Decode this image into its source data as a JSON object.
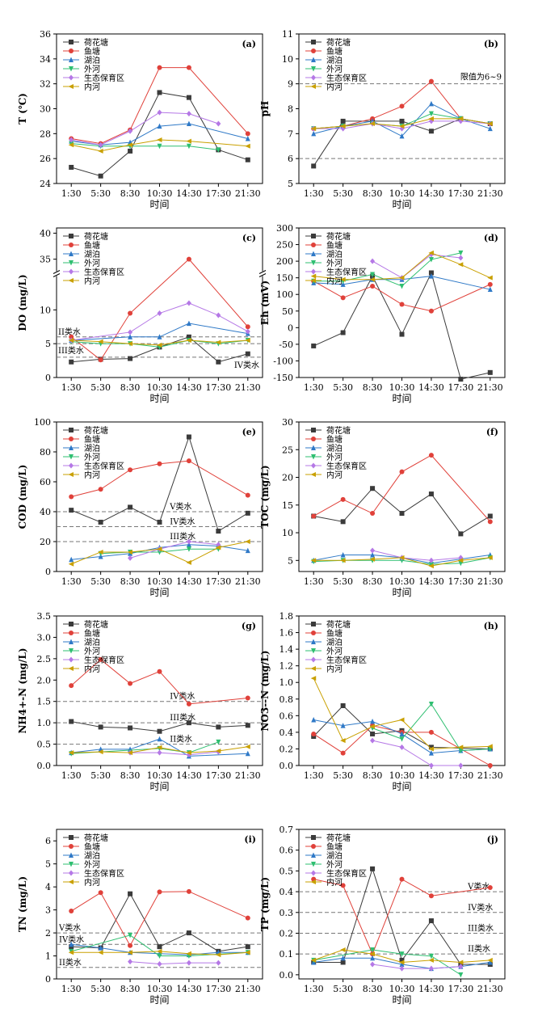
{
  "chart_data": [
    {
      "id": "a",
      "type": "line",
      "panel_label": "(a)",
      "categories": [
        "1:30",
        "5:30",
        "8:30",
        "10:30",
        "14:30",
        "17:30",
        "21:30"
      ],
      "xlabel": "时间",
      "ylabel": "T (℃)",
      "ylim": [
        24,
        36
      ],
      "yticks": [
        24,
        26,
        28,
        30,
        32,
        34,
        36
      ],
      "series": [
        {
          "name": "荷花塘",
          "values": [
            25.3,
            24.6,
            26.6,
            31.3,
            30.9,
            26.7,
            25.9
          ]
        },
        {
          "name": "鱼塘",
          "values": [
            27.6,
            27.2,
            28.3,
            33.3,
            33.3,
            null,
            28.0
          ]
        },
        {
          "name": "湖泊",
          "values": [
            27.4,
            27.1,
            27.3,
            28.6,
            28.8,
            null,
            27.6
          ]
        },
        {
          "name": "外河",
          "values": [
            27.2,
            27.0,
            27.0,
            27.0,
            27.0,
            26.7,
            null
          ]
        },
        {
          "name": "生态保育区",
          "values": [
            27.5,
            27.1,
            28.2,
            29.7,
            29.6,
            28.8,
            null
          ]
        },
        {
          "name": "内河",
          "values": [
            27.1,
            26.6,
            27.1,
            27.5,
            27.4,
            null,
            27.0
          ]
        }
      ],
      "reference_lines": []
    },
    {
      "id": "b",
      "type": "line",
      "panel_label": "(b)",
      "categories": [
        "1:30",
        "5:30",
        "8:30",
        "10:30",
        "14:30",
        "17:30",
        "21:30"
      ],
      "xlabel": "时间",
      "ylabel": "pH",
      "ylim": [
        5,
        11
      ],
      "yticks": [
        5,
        6,
        7,
        8,
        9,
        10,
        11
      ],
      "series": [
        {
          "name": "荷花塘",
          "values": [
            5.7,
            7.5,
            7.5,
            7.5,
            7.1,
            7.6,
            7.4
          ]
        },
        {
          "name": "鱼塘",
          "values": [
            7.2,
            7.3,
            7.6,
            8.1,
            9.1,
            7.6,
            7.4
          ]
        },
        {
          "name": "湖泊",
          "values": [
            7.0,
            7.3,
            7.5,
            6.9,
            8.2,
            7.6,
            7.2
          ]
        },
        {
          "name": "外河",
          "values": [
            7.2,
            7.3,
            7.4,
            7.3,
            7.8,
            7.6,
            7.4
          ]
        },
        {
          "name": "生态保育区",
          "values": [
            7.2,
            7.2,
            7.4,
            7.2,
            7.5,
            7.5,
            7.4
          ]
        },
        {
          "name": "内河",
          "values": [
            7.2,
            7.3,
            7.4,
            7.3,
            7.6,
            7.6,
            7.4
          ]
        }
      ],
      "reference_lines": [
        {
          "value": 9,
          "label": "限值为6~9"
        },
        {
          "value": 6,
          "label": ""
        }
      ]
    },
    {
      "id": "c",
      "type": "line",
      "panel_label": "(c)",
      "categories": [
        "1:30",
        "5:30",
        "8:30",
        "10:30",
        "14:30",
        "17:30",
        "21:30"
      ],
      "xlabel": "时间",
      "ylabel": "DO (mg/L)",
      "broken_axis": {
        "lower_range": [
          0,
          15
        ],
        "upper_range": [
          33,
          41
        ]
      },
      "yticks": [
        0,
        5,
        10,
        35,
        40
      ],
      "series": [
        {
          "name": "荷花塘",
          "values": [
            2.3,
            2.7,
            2.8,
            4.5,
            6.0,
            2.3,
            3.5
          ]
        },
        {
          "name": "鱼塘",
          "values": [
            6.0,
            2.6,
            9.5,
            null,
            35.0,
            null,
            7.5
          ]
        },
        {
          "name": "湖泊",
          "values": [
            5.5,
            null,
            6.0,
            6.0,
            8.0,
            null,
            6.5
          ]
        },
        {
          "name": "外河",
          "values": [
            5.3,
            5.0,
            5.0,
            4.5,
            5.5,
            5.0,
            5.5
          ]
        },
        {
          "name": "生态保育区",
          "values": [
            5.5,
            null,
            6.7,
            9.5,
            11.0,
            9.2,
            6.8
          ]
        },
        {
          "name": "内河",
          "values": [
            5.5,
            5.3,
            5.0,
            4.8,
            5.5,
            5.2,
            5.5
          ]
        }
      ],
      "reference_lines": [
        {
          "value": 6,
          "label": "II类水"
        },
        {
          "value": 5,
          "label": "III类水"
        },
        {
          "value": 3,
          "label": "IV类水"
        }
      ]
    },
    {
      "id": "d",
      "type": "line",
      "panel_label": "(d)",
      "categories": [
        "1:30",
        "5:30",
        "8:30",
        "10:30",
        "14:30",
        "17:30",
        "21:30"
      ],
      "xlabel": "时间",
      "ylabel": "Eh (mV)",
      "ylim": [
        -150,
        300
      ],
      "yticks": [
        -150,
        -100,
        -50,
        0,
        50,
        100,
        150,
        200,
        250,
        300
      ],
      "series": [
        {
          "name": "荷花塘",
          "values": [
            -55,
            -15,
            155,
            -20,
            165,
            -155,
            -135
          ]
        },
        {
          "name": "鱼塘",
          "values": [
            140,
            90,
            125,
            70,
            50,
            null,
            130
          ]
        },
        {
          "name": "湖泊",
          "values": [
            135,
            130,
            145,
            145,
            155,
            null,
            115
          ]
        },
        {
          "name": "外河",
          "values": [
            140,
            140,
            160,
            125,
            205,
            225,
            null
          ]
        },
        {
          "name": "生态保育区",
          "values": [
            null,
            null,
            200,
            150,
            220,
            210,
            null
          ]
        },
        {
          "name": "内河",
          "values": [
            155,
            145,
            145,
            150,
            225,
            190,
            150
          ]
        }
      ],
      "reference_lines": []
    },
    {
      "id": "e",
      "type": "line",
      "panel_label": "(e)",
      "categories": [
        "1:30",
        "5:30",
        "8:30",
        "10:30",
        "14:30",
        "17:30",
        "21:30"
      ],
      "xlabel": "时间",
      "ylabel": "COD (mg/L)",
      "ylim": [
        0,
        100
      ],
      "yticks": [
        0,
        20,
        40,
        60,
        80,
        100
      ],
      "series": [
        {
          "name": "荷花塘",
          "values": [
            41,
            33,
            43,
            33,
            90,
            27,
            39
          ]
        },
        {
          "name": "鱼塘",
          "values": [
            50,
            55,
            68,
            72,
            74,
            null,
            51
          ]
        },
        {
          "name": "湖泊",
          "values": [
            8,
            10,
            12,
            16,
            18,
            17,
            14
          ]
        },
        {
          "name": "外河",
          "values": [
            null,
            12,
            13,
            13,
            15,
            15,
            null
          ]
        },
        {
          "name": "生态保育区",
          "values": [
            null,
            null,
            9,
            15,
            20,
            18,
            null
          ]
        },
        {
          "name": "内河",
          "values": [
            5,
            13,
            13,
            15,
            6,
            16,
            20
          ]
        }
      ],
      "reference_lines": [
        {
          "value": 40,
          "label": "V类水"
        },
        {
          "value": 30,
          "label": "IV类水"
        },
        {
          "value": 20,
          "label": "III类水"
        }
      ]
    },
    {
      "id": "f",
      "type": "line",
      "panel_label": "(f)",
      "categories": [
        "1:30",
        "5:30",
        "8:30",
        "10:30",
        "14:30",
        "17:30",
        "21:30"
      ],
      "xlabel": "时间",
      "ylabel": "TOC (mg/L)",
      "ylim": [
        3,
        30
      ],
      "yticks": [
        5,
        10,
        15,
        20,
        25,
        30
      ],
      "series": [
        {
          "name": "荷花塘",
          "values": [
            13,
            12,
            18,
            13.5,
            17,
            9.8,
            13
          ]
        },
        {
          "name": "鱼塘",
          "values": [
            13,
            16,
            13.5,
            21,
            24,
            null,
            12
          ]
        },
        {
          "name": "湖泊",
          "values": [
            5,
            6,
            6,
            5.5,
            4.5,
            null,
            6
          ]
        },
        {
          "name": "外河",
          "values": [
            4.8,
            5,
            5,
            5,
            4.3,
            4.5,
            5.5
          ]
        },
        {
          "name": "生态保育区",
          "values": [
            null,
            null,
            6.8,
            5.5,
            5,
            5.5,
            null
          ]
        },
        {
          "name": "内河",
          "values": [
            5,
            5,
            5.2,
            5.5,
            4,
            5,
            5.5
          ]
        }
      ],
      "reference_lines": []
    },
    {
      "id": "g",
      "type": "line",
      "panel_label": "(g)",
      "categories": [
        "1:30",
        "5:30",
        "8:30",
        "10:30",
        "14:30",
        "17:30",
        "21:30"
      ],
      "xlabel": "时间",
      "ylabel": "NH4+-N (mg/L)",
      "ylim": [
        0,
        3.5
      ],
      "yticks": [
        0.0,
        0.5,
        1.0,
        1.5,
        2.0,
        2.5,
        3.0,
        3.5
      ],
      "series": [
        {
          "name": "荷花塘",
          "values": [
            1.03,
            0.9,
            0.88,
            0.8,
            1.0,
            0.9,
            0.94
          ]
        },
        {
          "name": "鱼塘",
          "values": [
            1.87,
            2.48,
            1.92,
            2.2,
            1.44,
            null,
            1.58
          ]
        },
        {
          "name": "湖泊",
          "values": [
            0.3,
            0.38,
            0.38,
            0.62,
            0.22,
            null,
            0.28
          ]
        },
        {
          "name": "外河",
          "values": [
            0.28,
            null,
            null,
            0.4,
            0.3,
            0.55,
            null
          ]
        },
        {
          "name": "生态保育区",
          "values": [
            null,
            null,
            0.3,
            0.3,
            0.25,
            0.32,
            null
          ]
        },
        {
          "name": "内河",
          "values": [
            0.3,
            0.32,
            0.3,
            0.42,
            0.3,
            0.34,
            0.44
          ]
        }
      ],
      "reference_lines": [
        {
          "value": 1.5,
          "label": "IV类水"
        },
        {
          "value": 1.0,
          "label": "III类水"
        },
        {
          "value": 0.5,
          "label": "II类水"
        }
      ]
    },
    {
      "id": "h",
      "type": "line",
      "panel_label": "(h)",
      "categories": [
        "1:30",
        "5:30",
        "8:30",
        "10:30",
        "14:30",
        "17:30",
        "21:30"
      ],
      "xlabel": "时间",
      "ylabel": "NO3--N (mg/L)",
      "ylim": [
        0,
        1.8
      ],
      "yticks": [
        0.0,
        0.2,
        0.4,
        0.6,
        0.8,
        1.0,
        1.2,
        1.4,
        1.6,
        1.8
      ],
      "series": [
        {
          "name": "荷花塘",
          "values": [
            0.35,
            0.72,
            0.38,
            0.42,
            0.22,
            null,
            0.2
          ]
        },
        {
          "name": "鱼塘",
          "values": [
            0.38,
            0.15,
            0.48,
            0.4,
            0.4,
            null,
            0.0
          ]
        },
        {
          "name": "湖泊",
          "values": [
            0.55,
            0.48,
            0.53,
            0.38,
            0.15,
            0.18,
            0.2
          ]
        },
        {
          "name": "外河",
          "values": [
            null,
            null,
            0.45,
            0.32,
            0.74,
            0.18,
            0.2
          ]
        },
        {
          "name": "生态保育区",
          "values": [
            null,
            null,
            0.3,
            0.22,
            0.0,
            0.0,
            null
          ]
        },
        {
          "name": "内河",
          "values": [
            1.05,
            0.3,
            0.47,
            0.55,
            0.2,
            0.22,
            0.23
          ]
        }
      ],
      "reference_lines": []
    },
    {
      "id": "i",
      "type": "line",
      "panel_label": "(i)",
      "categories": [
        "1:30",
        "5:30",
        "8:30",
        "10:30",
        "14:30",
        "17:30",
        "21:30"
      ],
      "xlabel": "时间",
      "ylabel": "TN (mg/L)",
      "ylim": [
        0,
        6.5
      ],
      "yticks": [
        0,
        1,
        2,
        3,
        4,
        5,
        6
      ],
      "series": [
        {
          "name": "荷花塘",
          "values": [
            1.4,
            1.35,
            3.7,
            1.4,
            2.0,
            1.2,
            1.4
          ]
        },
        {
          "name": "鱼塘",
          "values": [
            2.95,
            3.75,
            1.45,
            3.78,
            3.8,
            null,
            2.65
          ]
        },
        {
          "name": "湖泊",
          "values": [
            1.5,
            1.35,
            1.15,
            1.1,
            1.05,
            1.15,
            1.15
          ]
        },
        {
          "name": "外河",
          "values": [
            1.2,
            null,
            1.9,
            1.0,
            1.0,
            null,
            1.15
          ]
        },
        {
          "name": "生态保育区",
          "values": [
            null,
            null,
            0.75,
            0.65,
            0.7,
            0.7,
            null
          ]
        },
        {
          "name": "内河",
          "values": [
            1.15,
            1.15,
            1.15,
            1.2,
            1.1,
            1.05,
            1.15
          ]
        }
      ],
      "reference_lines": [
        {
          "value": 2.0,
          "label": "V类水"
        },
        {
          "value": 1.5,
          "label": "IV类水"
        },
        {
          "value": 0.5,
          "label": "II类水"
        }
      ]
    },
    {
      "id": "j",
      "type": "line",
      "panel_label": "(j)",
      "categories": [
        "1:30",
        "5:30",
        "8:30",
        "10:30",
        "14:30",
        "17:30",
        "21:30"
      ],
      "xlabel": "时间",
      "ylabel": "TP (mg/L)",
      "ylim": [
        -0.02,
        0.7
      ],
      "yticks": [
        0.0,
        0.1,
        0.2,
        0.3,
        0.4,
        0.5,
        0.6,
        0.7
      ],
      "series": [
        {
          "name": "荷花塘",
          "values": [
            0.06,
            0.06,
            0.51,
            0.07,
            0.26,
            0.05,
            0.05
          ]
        },
        {
          "name": "鱼塘",
          "values": [
            0.46,
            0.43,
            0.1,
            0.46,
            0.38,
            null,
            0.42
          ]
        },
        {
          "name": "湖泊",
          "values": [
            0.06,
            0.08,
            0.08,
            0.05,
            0.03,
            0.04,
            0.06
          ]
        },
        {
          "name": "外河",
          "values": [
            0.07,
            null,
            0.12,
            0.1,
            0.09,
            0.0,
            null
          ]
        },
        {
          "name": "生态保育区",
          "values": [
            null,
            null,
            0.05,
            0.03,
            0.03,
            0.04,
            null
          ]
        },
        {
          "name": "内河",
          "values": [
            0.07,
            0.12,
            0.1,
            0.06,
            0.07,
            0.06,
            0.07
          ]
        }
      ],
      "reference_lines": [
        {
          "value": 0.4,
          "label": "V类水"
        },
        {
          "value": 0.3,
          "label": "IV类水"
        },
        {
          "value": 0.2,
          "label": "III类水"
        },
        {
          "value": 0.1,
          "label": "II类水"
        }
      ]
    }
  ],
  "series_colors": {
    "荷花塘": "#3b3b3b",
    "鱼塘": "#e0413a",
    "湖泊": "#2f79c7",
    "外河": "#2fbf71",
    "生态保育区": "#b578e6",
    "内河": "#c9a000"
  },
  "series_markers": {
    "荷花塘": "square",
    "鱼塘": "circle",
    "湖泊": "triangle-up",
    "外河": "triangle-down",
    "生态保育区": "diamond",
    "内河": "triangle-left"
  }
}
